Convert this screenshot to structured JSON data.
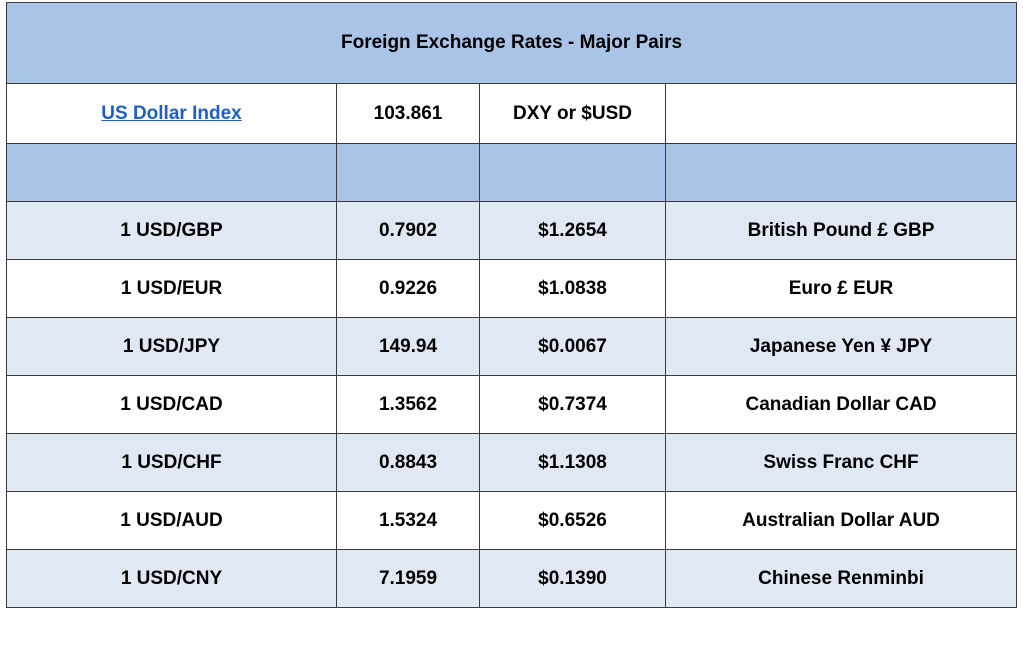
{
  "title": "Foreign Exchange Rates - Major Pairs",
  "index_row": {
    "name": "US Dollar Index",
    "value": "103.861",
    "symbol": "DXY or $USD",
    "extra": ""
  },
  "rates": [
    {
      "pair": "1 USD/GBP",
      "rate": "0.7902",
      "usd_value": "$1.2654",
      "currency": "British Pound £ GBP"
    },
    {
      "pair": "1 USD/EUR",
      "rate": "0.9226",
      "usd_value": "$1.0838",
      "currency": "Euro £ EUR"
    },
    {
      "pair": "1 USD/JPY",
      "rate": "149.94",
      "usd_value": "$0.0067",
      "currency": "Japanese Yen ¥ JPY"
    },
    {
      "pair": "1 USD/CAD",
      "rate": "1.3562",
      "usd_value": "$0.7374",
      "currency": "Canadian Dollar CAD"
    },
    {
      "pair": "1 USD/CHF",
      "rate": "0.8843",
      "usd_value": "$1.1308",
      "currency": "Swiss Franc CHF"
    },
    {
      "pair": "1 USD/AUD",
      "rate": "1.5324",
      "usd_value": "$0.6526",
      "currency": "Australian Dollar AUD"
    },
    {
      "pair": "1 USD/CNY",
      "rate": "7.1959",
      "usd_value": "$0.1390",
      "currency": "Chinese Renminbi"
    }
  ],
  "colors": {
    "header_blue": "#a9c4e6",
    "row_blue": "#dfe8f3",
    "link_blue": "#1f5fbf"
  }
}
